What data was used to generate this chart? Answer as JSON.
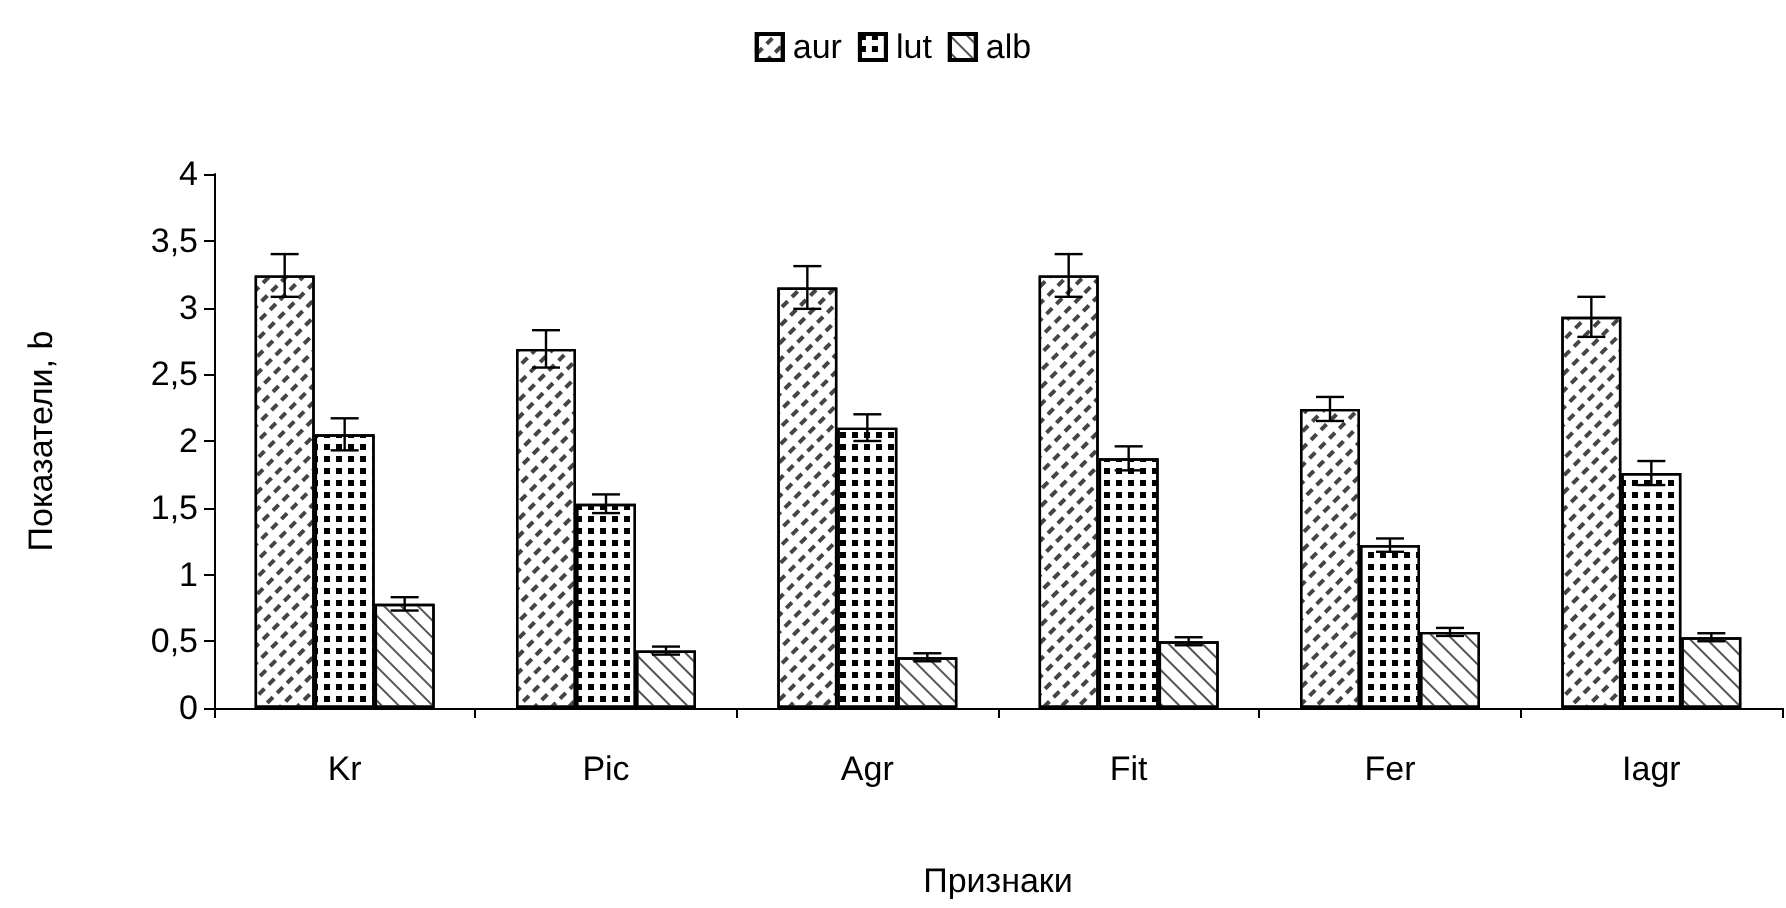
{
  "chart_data": {
    "type": "bar",
    "xlabel": "Признаки",
    "ylabel": "Показатели, b",
    "categories": [
      "Kr",
      "Pic",
      "Agr",
      "Fit",
      "Fer",
      "Iagr"
    ],
    "series": [
      {
        "name": "aur",
        "color": "#ffffff",
        "values": [
          3.24,
          2.69,
          3.15,
          3.24,
          2.24,
          2.93
        ],
        "errors": [
          0.16,
          0.14,
          0.16,
          0.16,
          0.09,
          0.15
        ]
      },
      {
        "name": "lut",
        "color": "#ffffff",
        "values": [
          2.05,
          1.53,
          2.1,
          1.87,
          1.22,
          1.76
        ],
        "errors": [
          0.12,
          0.07,
          0.1,
          0.09,
          0.05,
          0.09
        ]
      },
      {
        "name": "alb",
        "color": "#ffffff",
        "values": [
          0.78,
          0.43,
          0.38,
          0.5,
          0.57,
          0.53
        ],
        "errors": [
          0.05,
          0.03,
          0.03,
          0.03,
          0.03,
          0.03
        ]
      }
    ],
    "ylim": [
      0,
      4
    ],
    "yticks": [
      0,
      {
        "value": 0.5,
        "label": "0,5"
      },
      1,
      {
        "value": 1.5,
        "label": "1,5"
      },
      2,
      {
        "value": 2.5,
        "label": "2,5"
      },
      3,
      {
        "value": 3.5,
        "label": "3,5"
      },
      4
    ],
    "grid": false,
    "legend": "top"
  }
}
